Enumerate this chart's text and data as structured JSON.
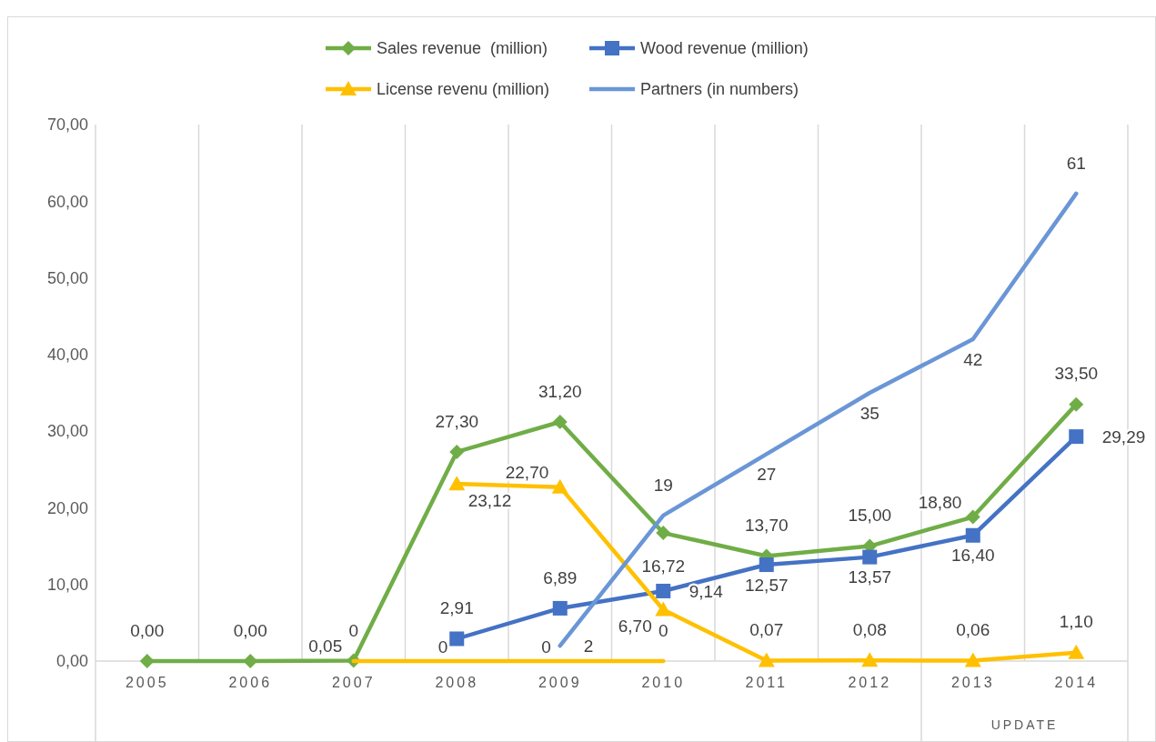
{
  "chart_data": {
    "type": "line",
    "categories": [
      "2005",
      "2006",
      "2007",
      "2008",
      "2009",
      "2010",
      "2011",
      "2012",
      "2013",
      "2014"
    ],
    "series": [
      {
        "name": "Sales revenue  (million)",
        "color": "#70ad47",
        "marker": "diamond",
        "values": [
          0,
          0,
          0.05,
          27.3,
          31.2,
          16.72,
          13.7,
          15.0,
          18.8,
          33.5
        ],
        "value_labels": [
          "0,00",
          "0,00",
          "0,05",
          "27,30",
          "31,20",
          "16,72",
          "13,70",
          "15,00",
          "18,80",
          "33,50"
        ]
      },
      {
        "name": "Wood revenue (million)",
        "color": "#4472c4",
        "marker": "square",
        "values": [
          null,
          null,
          null,
          2.91,
          6.89,
          9.14,
          12.57,
          13.57,
          16.4,
          29.29
        ],
        "value_labels": [
          null,
          null,
          null,
          "2,91",
          "6,89",
          "9,14",
          "12,57",
          "13,57",
          "16,40",
          "29,29"
        ]
      },
      {
        "name": "License revenu (million)",
        "color": "#ffc000",
        "marker": "triangle",
        "values": [
          null,
          null,
          null,
          23.12,
          22.7,
          6.7,
          0.07,
          0.08,
          0.06,
          1.1
        ],
        "value_labels": [
          null,
          null,
          null,
          "23,12",
          "22,70",
          "6,70",
          "0,07",
          "0,08",
          "0,06",
          "1,10"
        ]
      },
      {
        "name": "Partners (in numbers)",
        "color": "#6a96d6",
        "marker": "none",
        "values": [
          null,
          null,
          null,
          null,
          2,
          19,
          27,
          35,
          42,
          61
        ],
        "value_labels": [
          null,
          null,
          null,
          null,
          "2",
          "19",
          "27",
          "35",
          "42",
          "61"
        ]
      },
      {
        "color": "#ffc000",
        "marker": "none",
        "values": [
          null,
          null,
          0,
          0,
          0,
          0,
          null,
          null,
          null,
          null
        ],
        "value_labels": [
          null,
          null,
          "0",
          "0",
          "0",
          "0",
          null,
          null,
          null,
          null
        ]
      }
    ],
    "ylim": [
      0,
      70
    ],
    "yticks": [
      {
        "value": 0,
        "label": "0,00"
      },
      {
        "value": 10,
        "label": "10,00"
      },
      {
        "value": 20,
        "label": "20,00"
      },
      {
        "value": 30,
        "label": "30,00"
      },
      {
        "value": 40,
        "label": "40,00"
      },
      {
        "value": 50,
        "label": "50,00"
      },
      {
        "value": 60,
        "label": "60,00"
      },
      {
        "value": 70,
        "label": "70,00"
      }
    ],
    "grid": "x",
    "legend": "top",
    "annotations": [
      "UPDATE"
    ]
  }
}
